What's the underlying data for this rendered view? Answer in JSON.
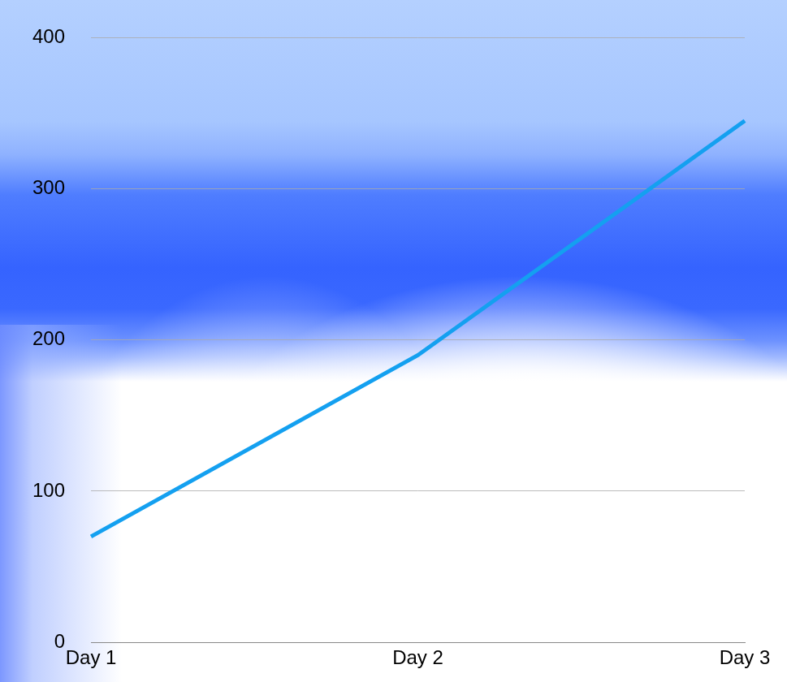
{
  "chart_data": {
    "type": "line",
    "categories": [
      "Day 1",
      "Day 2",
      "Day 3"
    ],
    "values": [
      70,
      190,
      345
    ],
    "color": "#14a0f0",
    "ylim": [
      0,
      400
    ],
    "yticks": [
      0,
      100,
      200,
      300,
      400
    ],
    "grid": true
  }
}
